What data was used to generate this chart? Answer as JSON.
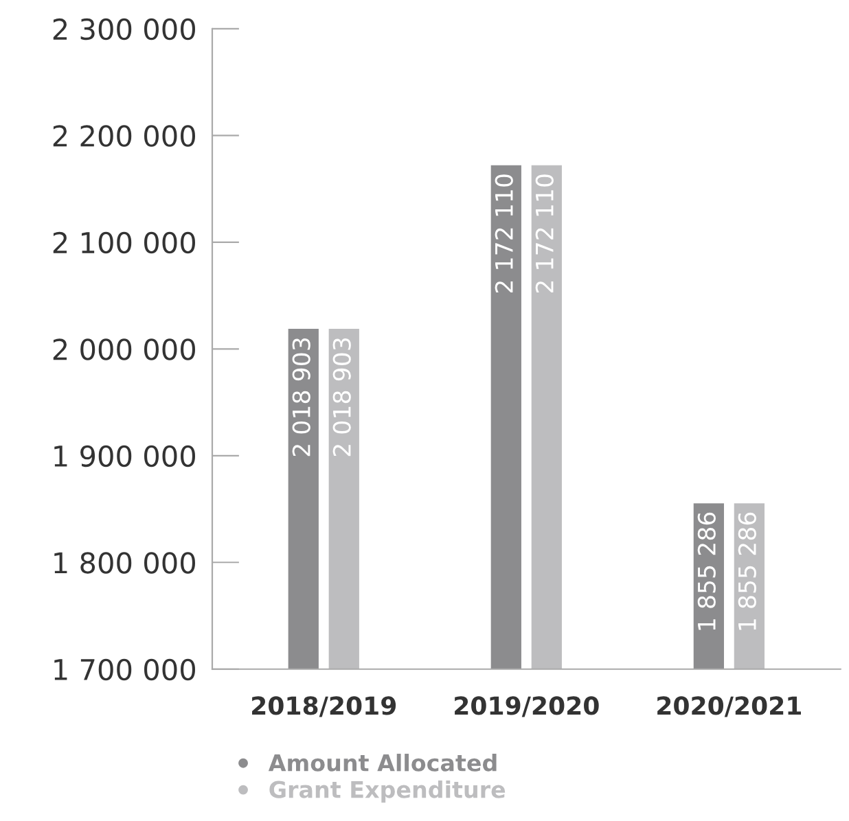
{
  "chart_data": {
    "type": "bar",
    "categories": [
      "2018/2019",
      "2019/2020",
      "2020/2021"
    ],
    "series": [
      {
        "name": "Amount Allocated",
        "color": "#8c8c8e",
        "values": [
          2018903,
          2172110,
          1855286
        ]
      },
      {
        "name": "Grant Expenditure",
        "color": "#bdbdbf",
        "values": [
          2018903,
          2172110,
          1855286
        ]
      }
    ],
    "ylim": [
      1700000,
      2300000
    ],
    "yticks": [
      {
        "value": 1700000,
        "label": "1 700 000"
      },
      {
        "value": 1800000,
        "label": "1 800 000"
      },
      {
        "value": 1900000,
        "label": "1 900 000"
      },
      {
        "value": 2000000,
        "label": "2 000 000"
      },
      {
        "value": 2100000,
        "label": "2 100 000"
      },
      {
        "value": 2200000,
        "label": "2 200 000"
      },
      {
        "value": 2300000,
        "label": "2 300 000"
      }
    ],
    "data_labels": true,
    "grid": false,
    "legend": "bottom"
  }
}
